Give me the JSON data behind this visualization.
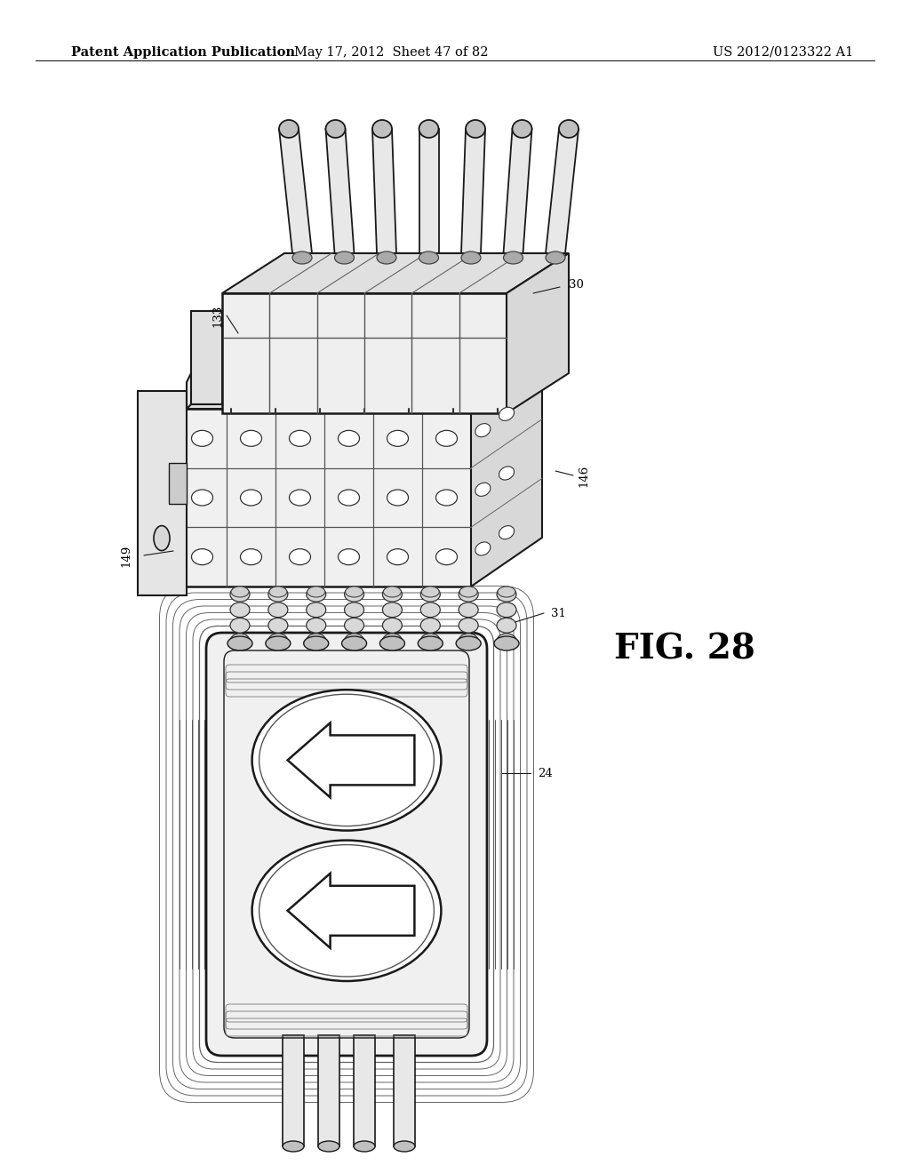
{
  "background_color": "#ffffff",
  "header_left": "Patent Application Publication",
  "header_center": "May 17, 2012  Sheet 47 of 82",
  "header_right": "US 2012/0123322 A1",
  "fig_label": "FIG. 28",
  "header_fontsize": 10.5,
  "ref_fontsize": 9.5,
  "fig_fontsize": 28,
  "line_color": "#1a1a1a",
  "light_gray": "#e8e8e8",
  "mid_gray": "#c0c0c0",
  "dark_gray": "#606060"
}
